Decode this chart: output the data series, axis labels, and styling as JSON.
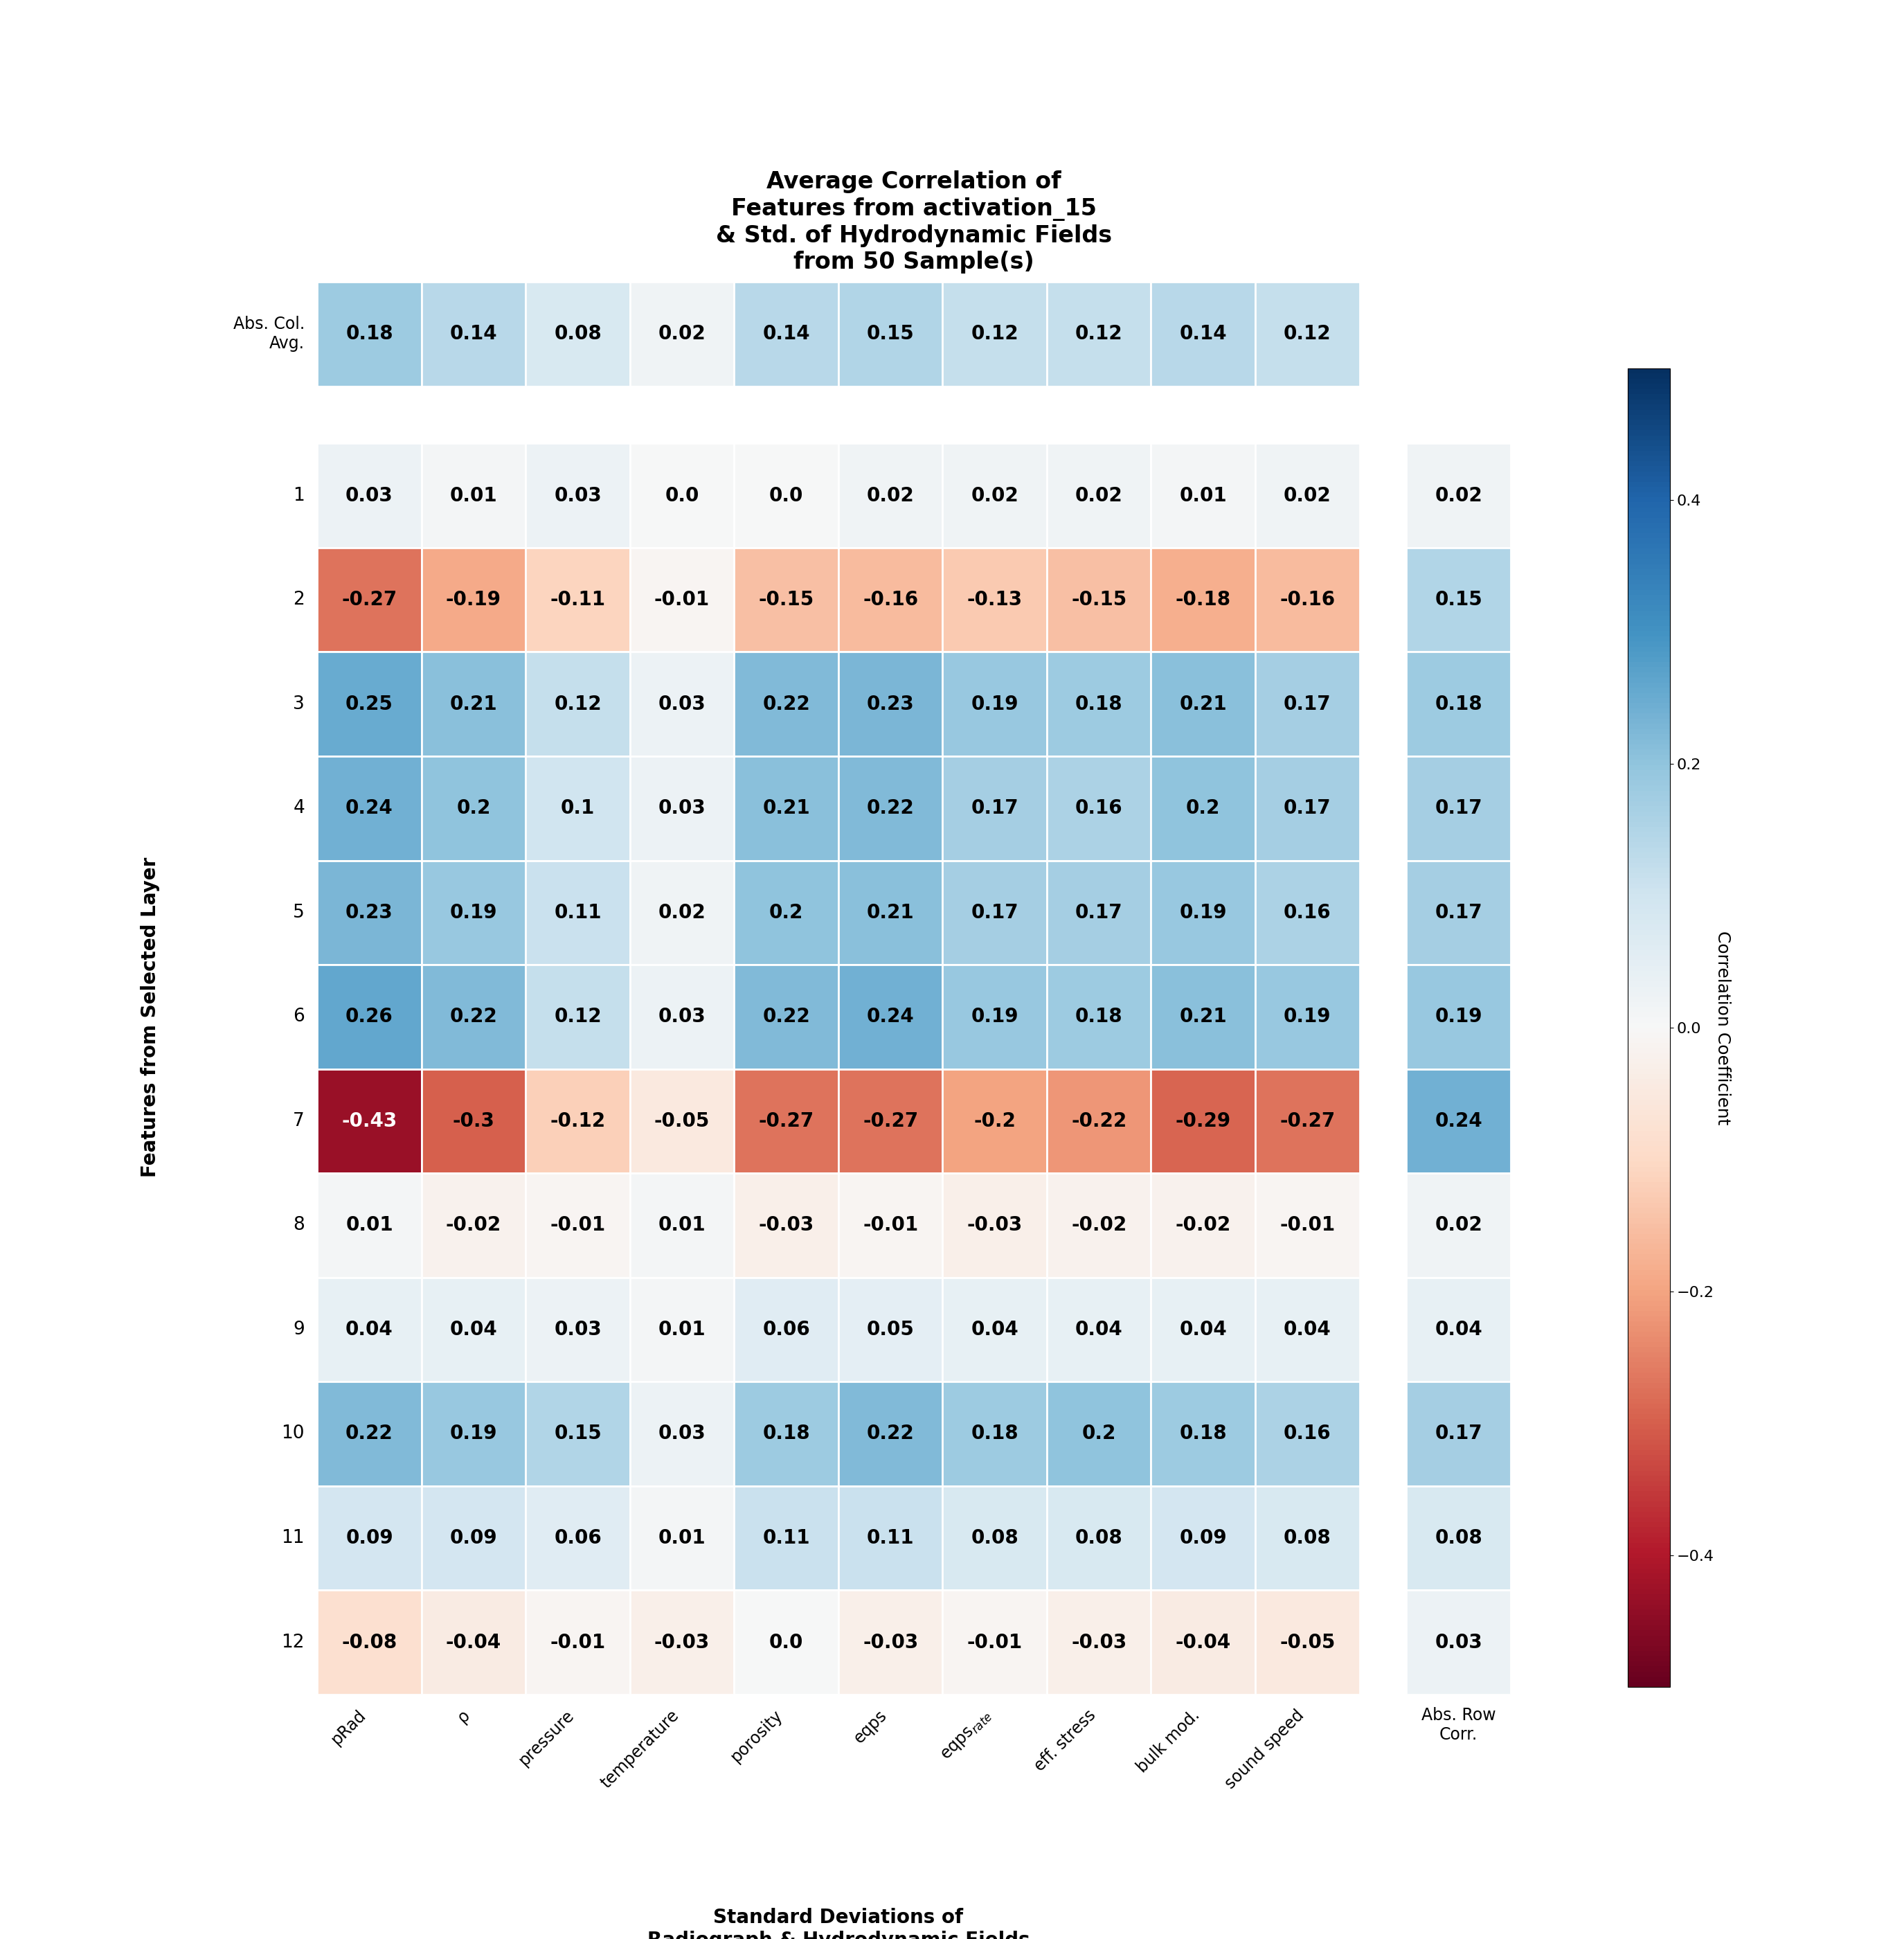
{
  "title": "Average Correlation of\nFeatures from activation_15\n& Std. of Hydrodynamic Fields\nfrom 50 Sample(s)",
  "xlabel": "Standard Deviations of\nRadiograph & Hydrodynamic Fields",
  "ylabel": "Features from Selected Layer",
  "colorbar_label": "Correlation Coefficient",
  "x_labels": [
    "pRad",
    "ρ",
    "pressure",
    "temperature",
    "porosity",
    "eqps",
    "eqps$_{rate}$",
    "eff. stress",
    "bulk mod.",
    "sound speed"
  ],
  "abs_row_label": "Abs. Row\nCorr.",
  "abs_col_label": "Abs. Col.\nAvg.",
  "vmin": -0.5,
  "vmax": 0.5,
  "main_data": [
    [
      0.03,
      0.01,
      0.03,
      0.0,
      -0.0,
      0.02,
      0.02,
      0.02,
      0.01,
      0.02
    ],
    [
      -0.27,
      -0.19,
      -0.11,
      -0.01,
      -0.15,
      -0.16,
      -0.13,
      -0.15,
      -0.18,
      -0.16
    ],
    [
      0.25,
      0.21,
      0.12,
      0.03,
      0.22,
      0.23,
      0.19,
      0.18,
      0.21,
      0.17
    ],
    [
      0.24,
      0.2,
      0.1,
      0.03,
      0.21,
      0.22,
      0.17,
      0.16,
      0.2,
      0.17
    ],
    [
      0.23,
      0.19,
      0.11,
      0.02,
      0.2,
      0.21,
      0.17,
      0.17,
      0.19,
      0.16
    ],
    [
      0.26,
      0.22,
      0.12,
      0.03,
      0.22,
      0.24,
      0.19,
      0.18,
      0.21,
      0.19
    ],
    [
      -0.43,
      -0.3,
      -0.12,
      -0.05,
      -0.27,
      -0.27,
      -0.2,
      -0.22,
      -0.29,
      -0.27
    ],
    [
      0.01,
      -0.02,
      -0.01,
      0.01,
      -0.03,
      -0.01,
      -0.03,
      -0.02,
      -0.02,
      -0.01
    ],
    [
      0.04,
      0.04,
      0.03,
      0.01,
      0.06,
      0.05,
      0.04,
      0.04,
      0.04,
      0.04
    ],
    [
      0.22,
      0.19,
      0.15,
      0.03,
      0.18,
      0.22,
      0.18,
      0.2,
      0.18,
      0.16
    ],
    [
      0.09,
      0.09,
      0.06,
      0.01,
      0.11,
      0.11,
      0.08,
      0.08,
      0.09,
      0.08
    ],
    [
      -0.08,
      -0.04,
      -0.01,
      -0.03,
      -0.0,
      -0.03,
      -0.01,
      -0.03,
      -0.04,
      -0.05
    ]
  ],
  "abs_col_avg": [
    0.18,
    0.14,
    0.08,
    0.02,
    0.14,
    0.15,
    0.12,
    0.12,
    0.14,
    0.12
  ],
  "abs_row_corr": [
    0.02,
    0.15,
    0.18,
    0.17,
    0.17,
    0.19,
    0.24,
    0.02,
    0.04,
    0.17,
    0.08,
    0.03
  ],
  "row_labels": [
    "1",
    "2",
    "3",
    "4",
    "5",
    "6",
    "7",
    "8",
    "9",
    "10",
    "11",
    "12"
  ],
  "fig_bg": "#f5f7fa",
  "cell_bg": "#eaf0f6"
}
